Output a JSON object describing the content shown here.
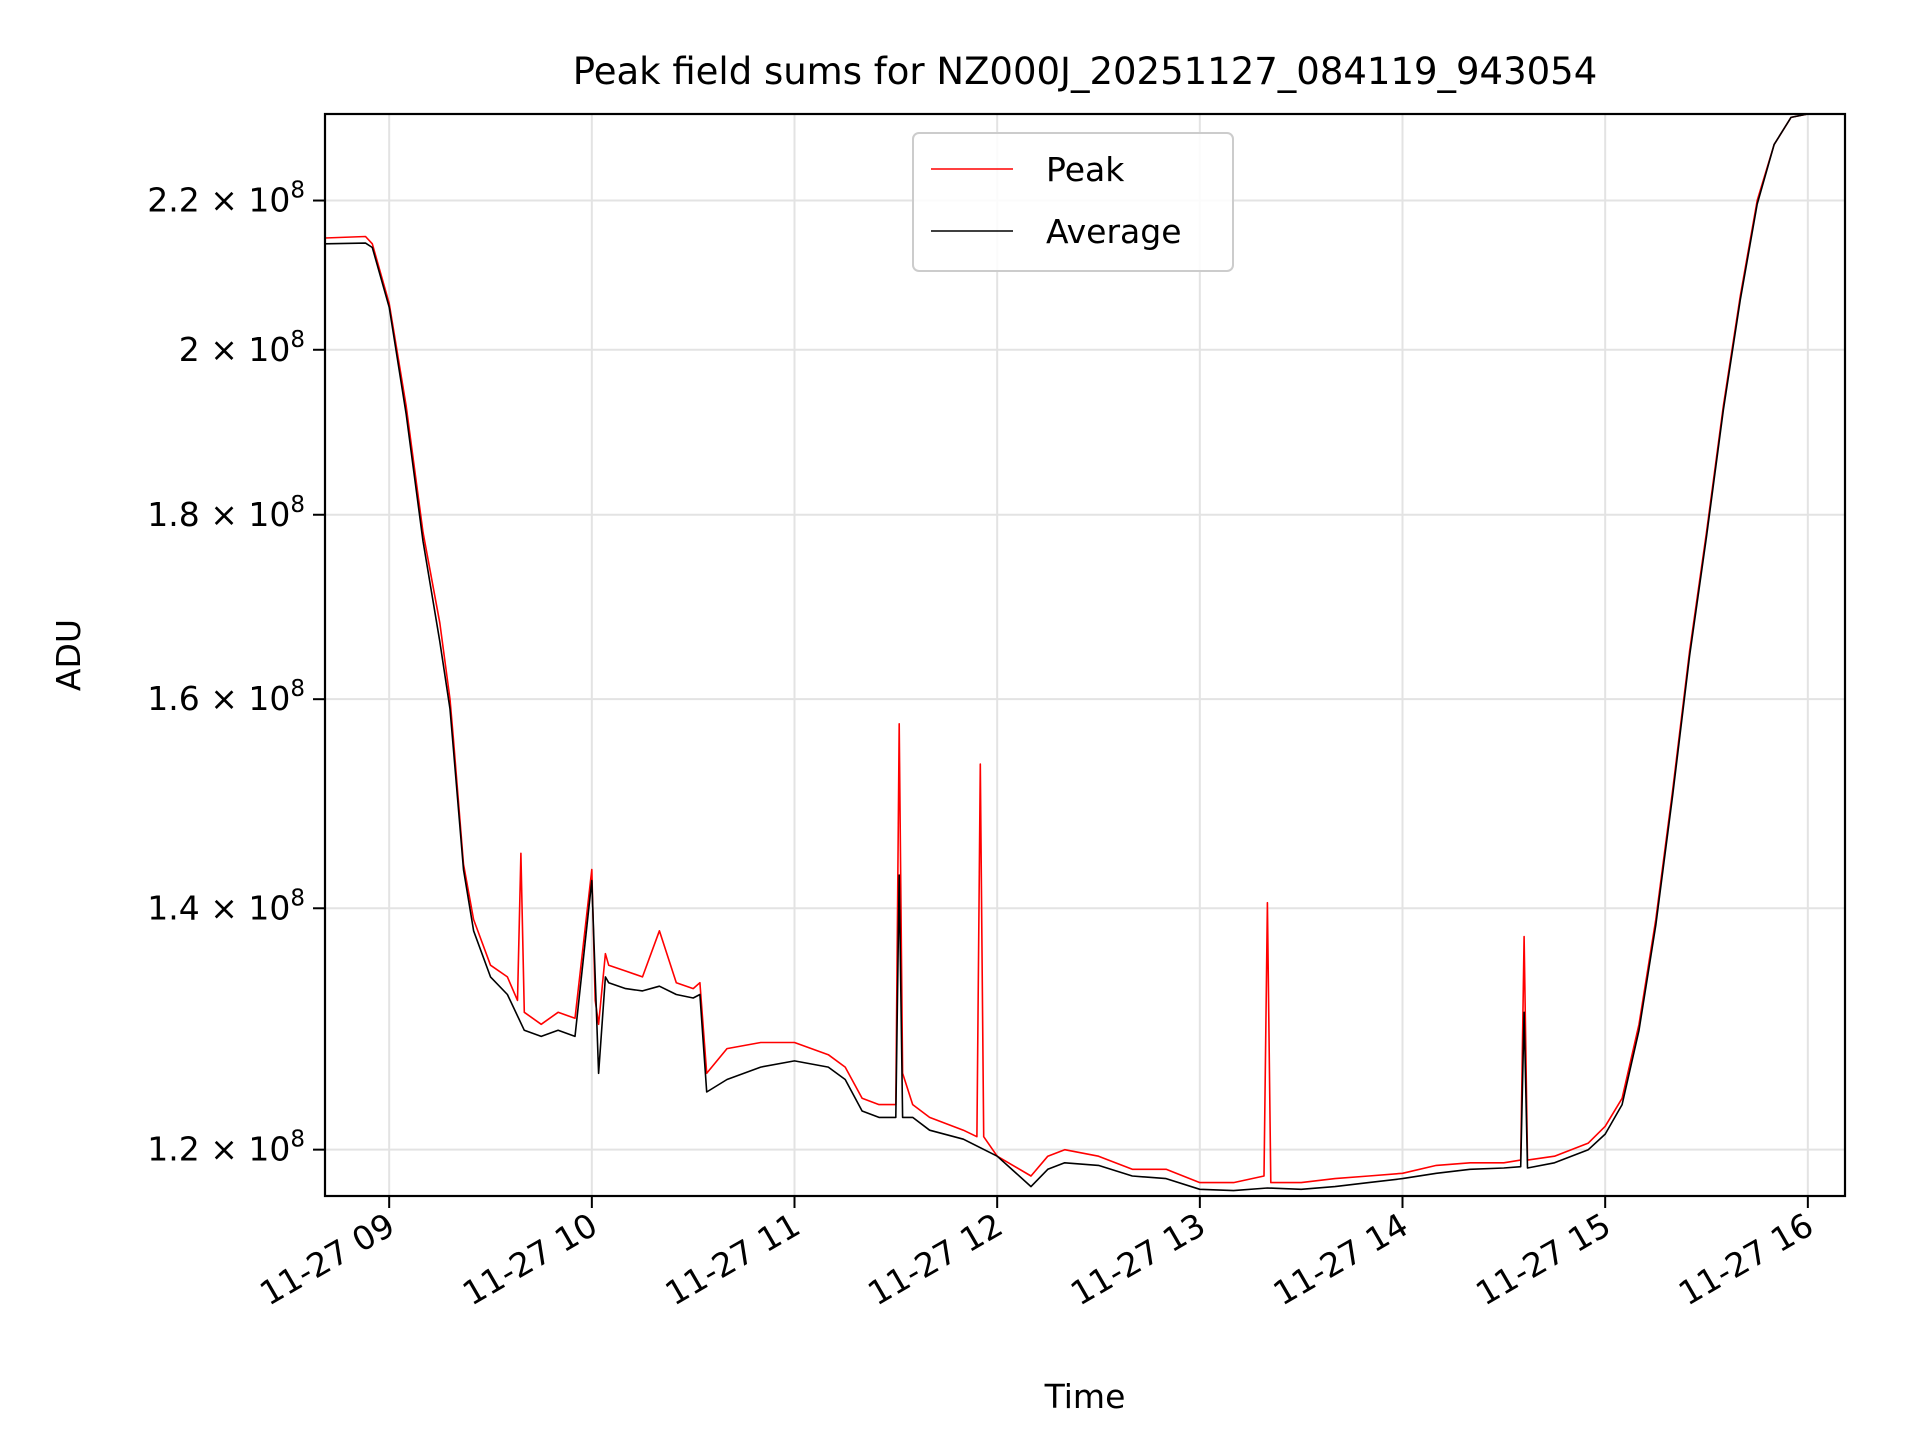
{
  "chart_data": {
    "type": "line",
    "title": "Peak field sums for NZ000J_20251127_084119_943054",
    "xlabel": "Time",
    "ylabel": "ADU",
    "y_scale": "log",
    "xlim": [
      "2025-11-27 08:41",
      "2025-11-27 16:11"
    ],
    "ylim": [
      116500000,
      232500000
    ],
    "grid": true,
    "legend_position": "upper-center",
    "x_ticks": [
      {
        "t": "2025-11-27 09:00",
        "label": "11-27 09"
      },
      {
        "t": "2025-11-27 10:00",
        "label": "11-27 10"
      },
      {
        "t": "2025-11-27 11:00",
        "label": "11-27 11"
      },
      {
        "t": "2025-11-27 12:00",
        "label": "11-27 12"
      },
      {
        "t": "2025-11-27 13:00",
        "label": "11-27 13"
      },
      {
        "t": "2025-11-27 14:00",
        "label": "11-27 14"
      },
      {
        "t": "2025-11-27 15:00",
        "label": "11-27 15"
      },
      {
        "t": "2025-11-27 16:00",
        "label": "11-27 16"
      }
    ],
    "y_ticks": [
      {
        "value": 120000000,
        "mantissa": "1.2",
        "exponent": "8"
      },
      {
        "value": 140000000,
        "mantissa": "1.4",
        "exponent": "8"
      },
      {
        "value": 160000000,
        "mantissa": "1.6",
        "exponent": "8"
      },
      {
        "value": 180000000,
        "mantissa": "1.8",
        "exponent": "8"
      },
      {
        "value": 200000000,
        "mantissa": "2",
        "exponent": "8"
      },
      {
        "value": 220000000,
        "mantissa": "2.2",
        "exponent": "8"
      }
    ],
    "y_tick_times_sign": "×",
    "y_tick_base": "10",
    "series": [
      {
        "name": "Peak",
        "color": "#ff0000",
        "x": [
          "2025-11-27 08:41",
          "2025-11-27 08:53",
          "2025-11-27 08:55",
          "2025-11-27 09:00",
          "2025-11-27 09:05",
          "2025-11-27 09:10",
          "2025-11-27 09:15",
          "2025-11-27 09:18",
          "2025-11-27 09:19",
          "2025-11-27 09:22",
          "2025-11-27 09:25",
          "2025-11-27 09:30",
          "2025-11-27 09:35",
          "2025-11-27 09:38",
          "2025-11-27 09:39",
          "2025-11-27 09:40",
          "2025-11-27 09:45",
          "2025-11-27 09:50",
          "2025-11-27 09:55",
          "2025-11-27 10:00",
          "2025-11-27 10:01",
          "2025-11-27 10:02",
          "2025-11-27 10:04",
          "2025-11-27 10:05",
          "2025-11-27 10:10",
          "2025-11-27 10:15",
          "2025-11-27 10:20",
          "2025-11-27 10:25",
          "2025-11-27 10:30",
          "2025-11-27 10:32",
          "2025-11-27 10:34",
          "2025-11-27 10:40",
          "2025-11-27 10:50",
          "2025-11-27 11:00",
          "2025-11-27 11:10",
          "2025-11-27 11:15",
          "2025-11-27 11:20",
          "2025-11-27 11:25",
          "2025-11-27 11:30",
          "2025-11-27 11:31",
          "2025-11-27 11:32",
          "2025-11-27 11:35",
          "2025-11-27 11:40",
          "2025-11-27 11:50",
          "2025-11-27 11:54",
          "2025-11-27 11:55",
          "2025-11-27 11:56",
          "2025-11-27 12:00",
          "2025-11-27 12:10",
          "2025-11-27 12:15",
          "2025-11-27 12:20",
          "2025-11-27 12:30",
          "2025-11-27 12:40",
          "2025-11-27 12:50",
          "2025-11-27 13:00",
          "2025-11-27 13:10",
          "2025-11-27 13:19",
          "2025-11-27 13:20",
          "2025-11-27 13:21",
          "2025-11-27 13:30",
          "2025-11-27 13:40",
          "2025-11-27 13:50",
          "2025-11-27 14:00",
          "2025-11-27 14:10",
          "2025-11-27 14:20",
          "2025-11-27 14:30",
          "2025-11-27 14:35",
          "2025-11-27 14:36",
          "2025-11-27 14:37",
          "2025-11-27 14:45",
          "2025-11-27 14:55",
          "2025-11-27 15:00",
          "2025-11-27 15:05",
          "2025-11-27 15:10",
          "2025-11-27 15:15",
          "2025-11-27 15:20",
          "2025-11-27 15:25",
          "2025-11-27 15:30",
          "2025-11-27 15:35",
          "2025-11-27 15:40",
          "2025-11-27 15:45",
          "2025-11-27 15:50",
          "2025-11-27 15:55",
          "2025-11-27 16:00",
          "2025-11-27 16:11"
        ],
        "values": [
          214800000,
          215000000,
          214000000,
          206000000,
          193000000,
          178000000,
          168000000,
          160000000,
          156000000,
          144000000,
          139000000,
          135000000,
          134000000,
          132000000,
          145000000,
          131000000,
          130000000,
          131000000,
          130500000,
          143500000,
          132000000,
          130000000,
          136000000,
          135000000,
          134500000,
          134000000,
          138000000,
          133500000,
          133000000,
          133500000,
          126000000,
          128000000,
          128500000,
          128500000,
          127500000,
          126500000,
          124000000,
          123500000,
          123500000,
          157500000,
          126000000,
          123500000,
          122500000,
          121500000,
          121000000,
          153500000,
          121000000,
          119500000,
          118000000,
          119500000,
          120000000,
          119500000,
          118500000,
          118500000,
          117500000,
          117500000,
          118000000,
          140500000,
          117500000,
          117500000,
          117800000,
          118000000,
          118200000,
          118800000,
          119000000,
          119000000,
          119200000,
          137500000,
          119200000,
          119500000,
          120500000,
          121800000,
          124000000,
          130000000,
          139000000,
          151000000,
          165000000,
          178000000,
          193000000,
          207000000,
          220000000,
          228000000,
          232000000,
          232500000,
          232500000
        ]
      },
      {
        "name": "Average",
        "color": "#000000",
        "x": [
          "2025-11-27 08:41",
          "2025-11-27 08:53",
          "2025-11-27 08:55",
          "2025-11-27 09:00",
          "2025-11-27 09:05",
          "2025-11-27 09:10",
          "2025-11-27 09:15",
          "2025-11-27 09:18",
          "2025-11-27 09:19",
          "2025-11-27 09:22",
          "2025-11-27 09:25",
          "2025-11-27 09:30",
          "2025-11-27 09:35",
          "2025-11-27 09:40",
          "2025-11-27 09:45",
          "2025-11-27 09:50",
          "2025-11-27 09:55",
          "2025-11-27 10:00",
          "2025-11-27 10:02",
          "2025-11-27 10:04",
          "2025-11-27 10:05",
          "2025-11-27 10:10",
          "2025-11-27 10:15",
          "2025-11-27 10:20",
          "2025-11-27 10:25",
          "2025-11-27 10:30",
          "2025-11-27 10:32",
          "2025-11-27 10:34",
          "2025-11-27 10:40",
          "2025-11-27 10:50",
          "2025-11-27 11:00",
          "2025-11-27 11:10",
          "2025-11-27 11:15",
          "2025-11-27 11:20",
          "2025-11-27 11:25",
          "2025-11-27 11:30",
          "2025-11-27 11:31",
          "2025-11-27 11:32",
          "2025-11-27 11:35",
          "2025-11-27 11:40",
          "2025-11-27 11:50",
          "2025-11-27 12:00",
          "2025-11-27 12:10",
          "2025-11-27 12:15",
          "2025-11-27 12:20",
          "2025-11-27 12:30",
          "2025-11-27 12:40",
          "2025-11-27 12:50",
          "2025-11-27 13:00",
          "2025-11-27 13:10",
          "2025-11-27 13:20",
          "2025-11-27 13:30",
          "2025-11-27 13:40",
          "2025-11-27 13:50",
          "2025-11-27 14:00",
          "2025-11-27 14:10",
          "2025-11-27 14:20",
          "2025-11-27 14:30",
          "2025-11-27 14:35",
          "2025-11-27 14:36",
          "2025-11-27 14:37",
          "2025-11-27 14:45",
          "2025-11-27 14:55",
          "2025-11-27 15:00",
          "2025-11-27 15:05",
          "2025-11-27 15:10",
          "2025-11-27 15:15",
          "2025-11-27 15:20",
          "2025-11-27 15:25",
          "2025-11-27 15:30",
          "2025-11-27 15:35",
          "2025-11-27 15:40",
          "2025-11-27 15:45",
          "2025-11-27 15:50",
          "2025-11-27 15:55",
          "2025-11-27 16:00",
          "2025-11-27 16:11"
        ],
        "values": [
          214000000,
          214100000,
          213500000,
          205500000,
          192000000,
          177000000,
          166000000,
          159000000,
          155000000,
          143500000,
          138000000,
          134000000,
          132500000,
          129500000,
          129000000,
          129500000,
          129000000,
          142500000,
          126000000,
          134000000,
          133500000,
          133000000,
          132800000,
          133200000,
          132500000,
          132200000,
          132500000,
          124500000,
          125500000,
          126500000,
          127000000,
          126500000,
          125500000,
          123000000,
          122500000,
          122500000,
          143000000,
          122500000,
          122500000,
          121500000,
          120800000,
          119500000,
          117200000,
          118500000,
          119000000,
          118800000,
          118000000,
          117800000,
          117000000,
          116900000,
          117100000,
          117000000,
          117200000,
          117500000,
          117800000,
          118200000,
          118500000,
          118600000,
          118700000,
          131000000,
          118600000,
          119000000,
          120000000,
          121200000,
          123500000,
          129500000,
          138500000,
          150500000,
          164500000,
          177500000,
          192500000,
          206500000,
          219500000,
          228000000,
          232000000,
          232500000,
          232500000
        ]
      }
    ]
  }
}
